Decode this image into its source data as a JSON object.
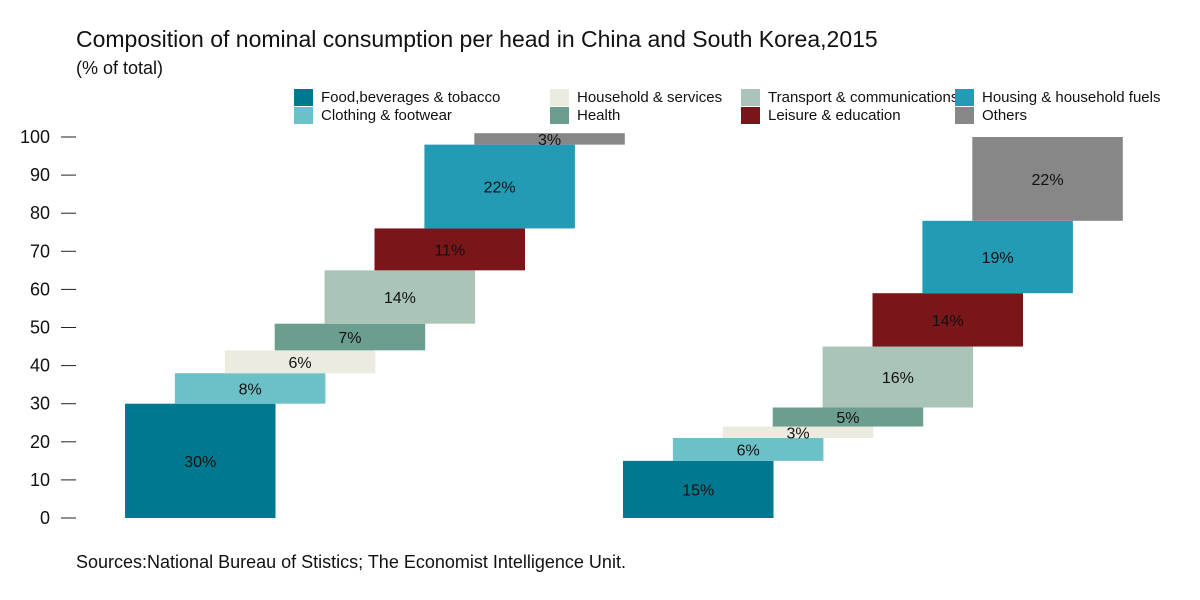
{
  "title": "Composition of nominal consumption per head in China and South Korea,2015",
  "subtitle": "(% of total)",
  "source": "Sources:National Bureau of Stistics; The Economist Intelligence Unit.",
  "chart_data": {
    "type": "bar",
    "subtype": "waterfall",
    "title": "Composition of nominal consumption per head in China and South Korea,2015",
    "subtitle": "(% of total)",
    "ylim": [
      0,
      100
    ],
    "yticks": [
      0,
      10,
      20,
      30,
      40,
      50,
      60,
      70,
      80,
      90,
      100
    ],
    "legend_position": "top-right",
    "grid": false,
    "categories": [
      "Food,beverages & tobacco",
      "Clothing & footwear",
      "Household & services",
      "Health",
      "Transport & communications",
      "Leisure & education",
      "Housing & household fuels",
      "Others"
    ],
    "colors": [
      "#00788f",
      "#6bc1c7",
      "#ebebe0",
      "#6b9e8f",
      "#abc4b8",
      "#78161a",
      "#249bb5",
      "#878787"
    ],
    "legend": [
      {
        "label": "Food,beverages & tobacco",
        "color": "#00788f"
      },
      {
        "label": "Household & services",
        "color": "#ebebe0"
      },
      {
        "label": "Transport & communications",
        "color": "#abc4b8"
      },
      {
        "label": "Housing & household fuels",
        "color": "#249bb5"
      },
      {
        "label": "Clothing & footwear",
        "color": "#6bc1c7"
      },
      {
        "label": "Health",
        "color": "#6b9e8f"
      },
      {
        "label": "Leisure & education",
        "color": "#78161a"
      },
      {
        "label": "Others",
        "color": "#878787"
      }
    ],
    "series": [
      {
        "bars": [
          {
            "start": 0,
            "end": 30,
            "label": "30%"
          },
          {
            "start": 30,
            "end": 38,
            "label": "8%"
          },
          {
            "start": 38,
            "end": 44,
            "label": "6%"
          },
          {
            "start": 44,
            "end": 51,
            "label": "7%"
          },
          {
            "start": 51,
            "end": 65,
            "label": "14%"
          },
          {
            "start": 65,
            "end": 76,
            "label": "11%"
          },
          {
            "start": 76,
            "end": 98,
            "label": "22%"
          },
          {
            "start": 98,
            "end": 101,
            "label": "3%"
          }
        ]
      },
      {
        "bars": [
          {
            "start": 0,
            "end": 15,
            "label": "15%"
          },
          {
            "start": 15,
            "end": 21,
            "label": "6%"
          },
          {
            "start": 21,
            "end": 24,
            "label": "3%"
          },
          {
            "start": 24,
            "end": 29,
            "label": "5%"
          },
          {
            "start": 29,
            "end": 45,
            "label": "16%"
          },
          {
            "start": 45,
            "end": 59,
            "label": "14%"
          },
          {
            "start": 59,
            "end": 78,
            "label": "19%"
          },
          {
            "start": 78,
            "end": 100,
            "label": "22%"
          }
        ]
      }
    ]
  }
}
